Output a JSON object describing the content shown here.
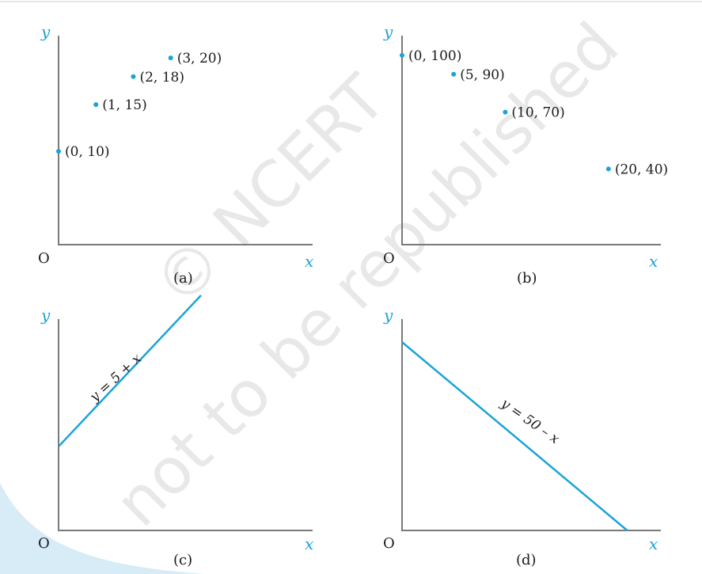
{
  "watermark": {
    "line1": "© NCERT",
    "line2": "not to be republished"
  },
  "colors": {
    "accent": "#1aa3d9",
    "axis": "#7a7a7a",
    "text": "#1a1a1a",
    "panel_corner": "#d7ecf7"
  },
  "chart_data": [
    {
      "type": "scatter",
      "caption": "(a)",
      "xlabel": "x",
      "ylabel": "y",
      "origin_label": "O",
      "points": [
        {
          "x": 0,
          "y": 10,
          "label": "(0, 10)"
        },
        {
          "x": 1,
          "y": 15,
          "label": "(1, 15)"
        },
        {
          "x": 2,
          "y": 18,
          "label": "(2, 18)"
        },
        {
          "x": 3,
          "y": 20,
          "label": "(3, 20)"
        }
      ],
      "xlim": [
        0,
        6.5
      ],
      "ylim": [
        0,
        24
      ]
    },
    {
      "type": "scatter",
      "caption": "(b)",
      "xlabel": "x",
      "ylabel": "y",
      "origin_label": "O",
      "points": [
        {
          "x": 0,
          "y": 100,
          "label": "(0, 100)"
        },
        {
          "x": 5,
          "y": 90,
          "label": "(5, 90)"
        },
        {
          "x": 10,
          "y": 70,
          "label": "(10, 70)"
        },
        {
          "x": 20,
          "y": 40,
          "label": "(20, 40)"
        }
      ],
      "xlim": [
        0,
        24
      ],
      "ylim": [
        0,
        115
      ]
    },
    {
      "type": "line",
      "caption": "(c)",
      "xlabel": "x",
      "ylabel": "y",
      "origin_label": "O",
      "equation": "y = 5 + x",
      "x": [
        0,
        9
      ],
      "y": [
        5,
        14
      ],
      "xlim": [
        0,
        15
      ],
      "ylim": [
        0,
        14
      ]
    },
    {
      "type": "line",
      "caption": "(d)",
      "xlabel": "x",
      "ylabel": "y",
      "origin_label": "O",
      "equation": "y = 50 – x",
      "x": [
        0,
        50
      ],
      "y": [
        50,
        0
      ],
      "xlim": [
        0,
        55
      ],
      "ylim": [
        0,
        58
      ]
    }
  ]
}
